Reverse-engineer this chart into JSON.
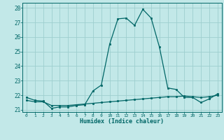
{
  "xlabel": "Humidex (Indice chaleur)",
  "ylabel": "",
  "background_color": "#c2e8e8",
  "grid_color": "#9ecece",
  "line_color": "#006666",
  "xlim": [
    -0.5,
    23.5
  ],
  "ylim": [
    20.85,
    28.35
  ],
  "yticks": [
    21,
    22,
    23,
    24,
    25,
    26,
    27,
    28
  ],
  "xticks": [
    0,
    1,
    2,
    3,
    4,
    5,
    6,
    7,
    8,
    9,
    10,
    11,
    12,
    13,
    14,
    15,
    16,
    17,
    18,
    19,
    20,
    21,
    22,
    23
  ],
  "series1_x": [
    0,
    1,
    2,
    3,
    4,
    5,
    6,
    7,
    8,
    9,
    10,
    11,
    12,
    13,
    14,
    15,
    16,
    17,
    18,
    19,
    20,
    21,
    22,
    23
  ],
  "series1_y": [
    21.85,
    21.65,
    21.6,
    21.1,
    21.2,
    21.2,
    21.3,
    21.35,
    22.3,
    22.7,
    25.5,
    27.25,
    27.3,
    26.8,
    27.9,
    27.3,
    25.3,
    22.5,
    22.4,
    21.85,
    21.85,
    21.5,
    21.75,
    22.1
  ],
  "series2_x": [
    0,
    1,
    2,
    3,
    4,
    5,
    6,
    7,
    8,
    9,
    10,
    11,
    12,
    13,
    14,
    15,
    16,
    17,
    18,
    19,
    20,
    21,
    22,
    23
  ],
  "series2_y": [
    21.65,
    21.55,
    21.55,
    21.3,
    21.3,
    21.3,
    21.35,
    21.4,
    21.45,
    21.5,
    21.55,
    21.6,
    21.65,
    21.7,
    21.75,
    21.8,
    21.85,
    21.9,
    21.9,
    21.95,
    21.9,
    21.85,
    21.9,
    22.0
  ]
}
